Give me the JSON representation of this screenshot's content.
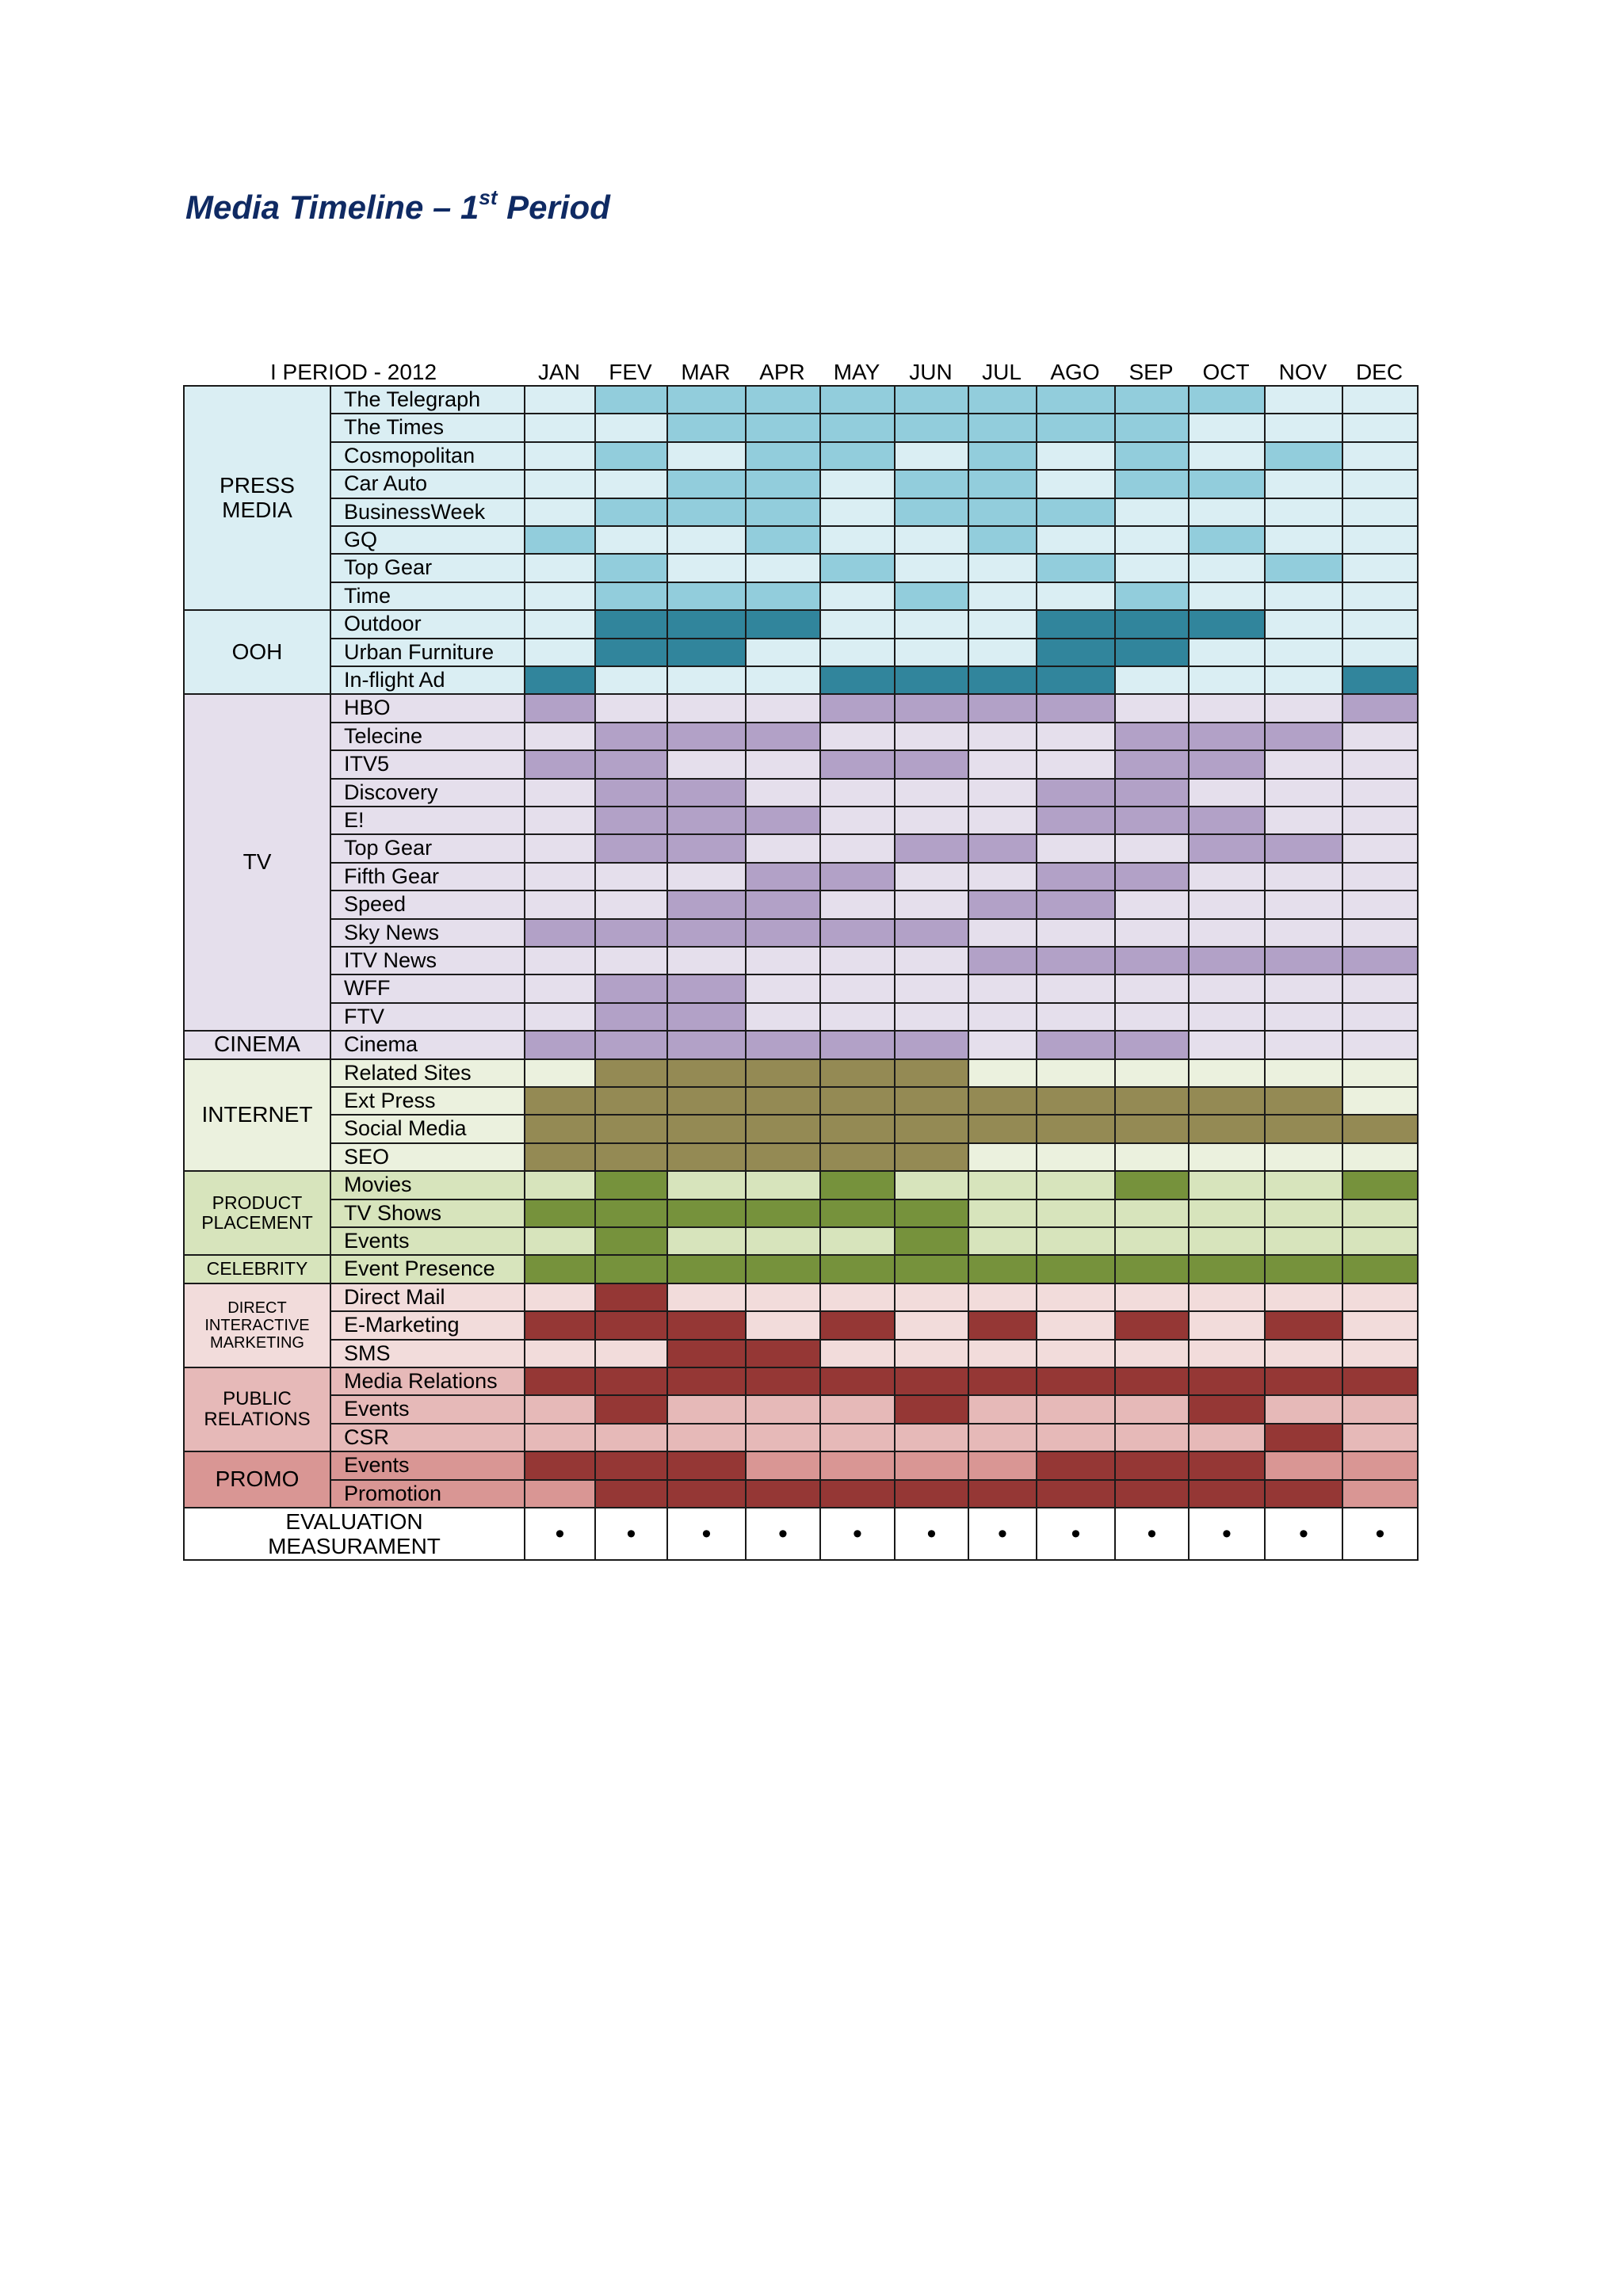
{
  "doc": {
    "title_main": "Media Timeline – 1",
    "title_sup": "st",
    "title_end": " Period"
  },
  "timeline": {
    "period_label": "I PERIOD - 2012",
    "months": [
      "JAN",
      "FEV",
      "MAR",
      "APR",
      "MAY",
      "JUN",
      "JUL",
      "AGO",
      "SEP",
      "OCT",
      "NOV",
      "DEC"
    ],
    "groups": [
      {
        "label": "PRESS\nMEDIA",
        "palette": "press",
        "channels": [
          {
            "name": "The Telegraph",
            "active": [
              0,
              1,
              1,
              1,
              1,
              1,
              1,
              1,
              1,
              1,
              0,
              0
            ]
          },
          {
            "name": "The Times",
            "active": [
              0,
              0,
              1,
              1,
              1,
              1,
              1,
              1,
              1,
              0,
              0,
              0
            ]
          },
          {
            "name": "Cosmopolitan",
            "active": [
              0,
              1,
              0,
              1,
              1,
              0,
              1,
              0,
              1,
              0,
              1,
              0
            ]
          },
          {
            "name": "Car Auto",
            "active": [
              0,
              0,
              1,
              1,
              0,
              1,
              1,
              0,
              1,
              1,
              0,
              0
            ]
          },
          {
            "name": "BusinessWeek",
            "active": [
              0,
              1,
              1,
              1,
              0,
              1,
              1,
              1,
              0,
              0,
              0,
              0
            ]
          },
          {
            "name": "GQ",
            "active": [
              1,
              0,
              0,
              1,
              0,
              0,
              1,
              0,
              0,
              1,
              0,
              0
            ]
          },
          {
            "name": "Top Gear",
            "active": [
              0,
              1,
              0,
              0,
              1,
              0,
              0,
              1,
              0,
              0,
              1,
              0
            ]
          },
          {
            "name": "Time",
            "active": [
              0,
              1,
              1,
              1,
              0,
              1,
              0,
              0,
              1,
              0,
              0,
              0
            ]
          }
        ]
      },
      {
        "label": "OOH",
        "palette": "ooh",
        "channels": [
          {
            "name": "Outdoor",
            "active": [
              0,
              1,
              1,
              1,
              0,
              0,
              0,
              1,
              1,
              1,
              0,
              0
            ]
          },
          {
            "name": "Urban Furniture",
            "active": [
              0,
              1,
              1,
              0,
              0,
              0,
              0,
              1,
              1,
              0,
              0,
              0
            ]
          },
          {
            "name": "In-flight Ad",
            "active": [
              1,
              0,
              0,
              0,
              1,
              1,
              1,
              1,
              0,
              0,
              0,
              1
            ]
          }
        ]
      },
      {
        "label": "TV",
        "palette": "tv",
        "channels": [
          {
            "name": "HBO",
            "active": [
              1,
              0,
              0,
              0,
              1,
              1,
              1,
              1,
              0,
              0,
              0,
              1
            ]
          },
          {
            "name": "Telecine",
            "active": [
              0,
              1,
              1,
              1,
              0,
              0,
              0,
              0,
              1,
              1,
              1,
              0
            ]
          },
          {
            "name": "ITV5",
            "active": [
              1,
              1,
              0,
              0,
              1,
              1,
              0,
              0,
              1,
              1,
              0,
              0
            ]
          },
          {
            "name": "Discovery",
            "active": [
              0,
              1,
              1,
              0,
              0,
              0,
              0,
              1,
              1,
              0,
              0,
              0
            ]
          },
          {
            "name": "E!",
            "active": [
              0,
              1,
              1,
              1,
              0,
              0,
              0,
              1,
              1,
              1,
              0,
              0
            ]
          },
          {
            "name": "Top Gear",
            "active": [
              0,
              1,
              1,
              0,
              0,
              1,
              1,
              0,
              0,
              1,
              1,
              0
            ]
          },
          {
            "name": "Fifth Gear",
            "active": [
              0,
              0,
              0,
              1,
              1,
              0,
              0,
              1,
              1,
              0,
              0,
              0
            ]
          },
          {
            "name": "Speed",
            "active": [
              0,
              0,
              1,
              1,
              0,
              0,
              1,
              1,
              0,
              0,
              0,
              0
            ]
          },
          {
            "name": "Sky News",
            "active": [
              1,
              1,
              1,
              1,
              1,
              1,
              0,
              0,
              0,
              0,
              0,
              0
            ]
          },
          {
            "name": "ITV News",
            "active": [
              0,
              0,
              0,
              0,
              0,
              0,
              1,
              1,
              1,
              1,
              1,
              1
            ]
          },
          {
            "name": "WFF",
            "active": [
              0,
              1,
              1,
              0,
              0,
              0,
              0,
              0,
              0,
              0,
              0,
              0
            ]
          },
          {
            "name": "FTV",
            "active": [
              0,
              1,
              1,
              0,
              0,
              0,
              0,
              0,
              0,
              0,
              0,
              0
            ]
          }
        ]
      },
      {
        "label": "CINEMA",
        "palette": "tv",
        "channels": [
          {
            "name": "Cinema",
            "active": [
              1,
              1,
              1,
              1,
              1,
              1,
              0,
              1,
              1,
              0,
              0,
              0
            ]
          }
        ]
      },
      {
        "label": "INTERNET",
        "palette": "internet",
        "channels": [
          {
            "name": "Related Sites",
            "active": [
              0,
              1,
              1,
              1,
              1,
              1,
              0,
              0,
              0,
              0,
              0,
              0
            ]
          },
          {
            "name": "Ext Press",
            "active": [
              1,
              1,
              1,
              1,
              1,
              1,
              1,
              1,
              1,
              1,
              1,
              0
            ]
          },
          {
            "name": "Social Media",
            "active": [
              1,
              1,
              1,
              1,
              1,
              1,
              1,
              1,
              1,
              1,
              1,
              1
            ]
          },
          {
            "name": "SEO",
            "active": [
              1,
              1,
              1,
              1,
              1,
              1,
              0,
              0,
              0,
              0,
              0,
              0
            ]
          }
        ]
      },
      {
        "label": "PRODUCT\nPLACEMENT",
        "palette": "green",
        "channels": [
          {
            "name": "Movies",
            "active": [
              0,
              1,
              0,
              0,
              1,
              0,
              0,
              0,
              1,
              0,
              0,
              1
            ]
          },
          {
            "name": "TV Shows",
            "active": [
              1,
              1,
              1,
              1,
              1,
              1,
              0,
              0,
              0,
              0,
              0,
              0
            ]
          },
          {
            "name": "Events",
            "active": [
              0,
              1,
              0,
              0,
              0,
              1,
              0,
              0,
              0,
              0,
              0,
              0
            ]
          }
        ]
      },
      {
        "label": "CELEBRITY",
        "palette": "green",
        "channels": [
          {
            "name": "Event Presence",
            "active": [
              1,
              1,
              1,
              1,
              1,
              1,
              1,
              1,
              1,
              1,
              1,
              1
            ]
          }
        ]
      },
      {
        "label": "DIRECT\nINTERACTIVE\nMARKETING",
        "palette": "direct",
        "channels": [
          {
            "name": "Direct Mail",
            "active": [
              0,
              1,
              0,
              0,
              0,
              0,
              0,
              0,
              0,
              0,
              0,
              0
            ]
          },
          {
            "name": "E-Marketing",
            "active": [
              1,
              1,
              1,
              0,
              1,
              0,
              1,
              0,
              1,
              0,
              1,
              0
            ]
          },
          {
            "name": "SMS",
            "active": [
              0,
              0,
              1,
              1,
              0,
              0,
              0,
              0,
              0,
              0,
              0,
              0
            ]
          }
        ]
      },
      {
        "label": "PUBLIC\nRELATIONS",
        "palette": "pr",
        "channels": [
          {
            "name": "Media Relations",
            "active": [
              1,
              1,
              1,
              1,
              1,
              1,
              1,
              1,
              1,
              1,
              1,
              1
            ]
          },
          {
            "name": "Events",
            "active": [
              0,
              1,
              0,
              0,
              0,
              1,
              0,
              0,
              0,
              1,
              0,
              0
            ]
          },
          {
            "name": "CSR",
            "active": [
              0,
              0,
              0,
              0,
              0,
              0,
              0,
              0,
              0,
              0,
              1,
              0
            ]
          }
        ]
      },
      {
        "label": "PROMO",
        "palette": "promo",
        "channels": [
          {
            "name": "Events",
            "active": [
              1,
              1,
              1,
              0,
              0,
              0,
              0,
              1,
              1,
              1,
              0,
              0
            ]
          },
          {
            "name": "Promotion",
            "active": [
              0,
              1,
              1,
              1,
              1,
              1,
              1,
              1,
              1,
              1,
              1,
              0
            ]
          }
        ]
      }
    ],
    "evaluation": {
      "label": "EVALUATION\nMEASURAMENT",
      "mark": "•",
      "active": [
        1,
        1,
        1,
        1,
        1,
        1,
        1,
        1,
        1,
        1,
        1,
        1
      ]
    }
  },
  "palettes": {
    "press": {
      "group_bg": "#daeef3",
      "channel_bg": "#daeef3",
      "off": "#daeef3",
      "on": "#92cddc",
      "group_font_size": 28
    },
    "ooh": {
      "group_bg": "#daeef3",
      "channel_bg": "#daeef3",
      "off": "#daeef3",
      "on": "#31859c",
      "group_font_size": 28
    },
    "tv": {
      "group_bg": "#e5dfec",
      "channel_bg": "#e5dfec",
      "off": "#e5dfec",
      "on": "#b2a1c7",
      "group_font_size": 28
    },
    "internet": {
      "group_bg": "#ebf1de",
      "channel_bg": "#ebf1de",
      "off": "#ebf1de",
      "on": "#948a54",
      "group_font_size": 28
    },
    "green": {
      "group_bg": "#d7e4bc",
      "channel_bg": "#d7e4bc",
      "off": "#d7e4bc",
      "on": "#76923c",
      "group_font_size": 23
    },
    "direct": {
      "group_bg": "#f2dcdb",
      "channel_bg": "#f2dcdb",
      "off": "#f2dcdb",
      "on": "#953735",
      "group_font_size": 20
    },
    "pr": {
      "group_bg": "#e6b9b8",
      "channel_bg": "#e6b9b8",
      "off": "#e6b9b8",
      "on": "#953735",
      "group_font_size": 24
    },
    "promo": {
      "group_bg": "#d99694",
      "channel_bg": "#d99694",
      "off": "#d99694",
      "on": "#953735",
      "group_font_size": 28
    }
  }
}
